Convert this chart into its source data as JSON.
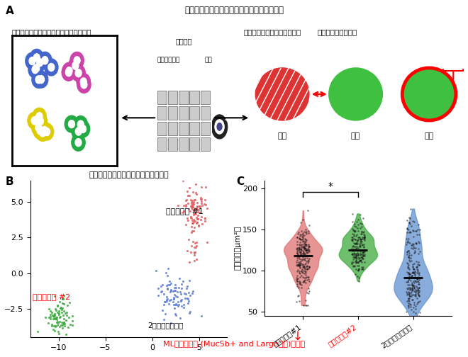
{
  "title_A": "ロボットを用いた細胞の撮影とピックアップ",
  "label_A": "A",
  "label_B": "B",
  "label_C": "C",
  "panel_B_title": "単一細胞のトランスクリプトーム解析",
  "cluster1_label": "クラブ細胞 #1",
  "cluster2_label": "クラブ細胞 #2",
  "cluster3_label": "2型肺胞上皮細胞",
  "cluster1_color": "#E06060",
  "cluster2_color": "#3DAA3D",
  "cluster3_color": "#6080D0",
  "panel_C_ylabel": "細胞面積（μm²）",
  "panel_C_ylim": [
    45,
    210
  ],
  "panel_C_yticks": [
    50,
    100,
    150,
    200
  ],
  "violin1_color": "#E07070",
  "violin2_color": "#3DAA3D",
  "violin3_color": "#6090D0",
  "tick_label1": "クラブ細胞#1",
  "tick_label2": "クラブ細胞#2",
  "tick_label3": "2型肺胞上皮細胞",
  "bottom_text": "MLクラブ細胞 (Muc5b+ and Largeより)と命名",
  "significance_text": "*",
  "left_text1": "・単一細胞のトランスクリプトーム解析",
  "right_text1": "・撮影画像を用いた形態計測",
  "robot_label": "ロボット",
  "pickup_label": "ピックアップ",
  "photo_label": "撮影",
  "face_label": "細胞の「顔」を認識",
  "area_label": "面積",
  "dist_label": "距離",
  "perim_label": "周長"
}
